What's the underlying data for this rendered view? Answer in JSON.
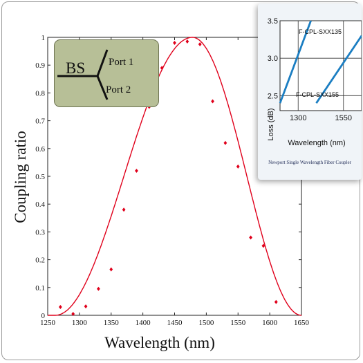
{
  "chart_data": [
    {
      "type": "scatter+line",
      "xlabel": "Wavelength  (nm)",
      "ylabel": "Coupling ratio",
      "xlim": [
        1250,
        1650
      ],
      "ylim": [
        0,
        1
      ],
      "xticks": [
        "1250",
        "1300",
        "1350",
        "1400",
        "1450",
        "1500",
        "1550",
        "1600",
        "1650"
      ],
      "yticks": [
        "0",
        "0.1",
        "0.2",
        "0.3",
        "0.4",
        "0.5",
        "0.6",
        "0.7",
        "0.8",
        "0.9",
        "1"
      ],
      "grid": false,
      "series": [
        {
          "kind": "points",
          "color": "#e0001b",
          "x": [
            1270,
            1290,
            1310,
            1330,
            1350,
            1370,
            1390,
            1410,
            1430,
            1450,
            1470,
            1490,
            1510,
            1530,
            1550,
            1570,
            1590,
            1610
          ],
          "y": [
            0.03,
            0.005,
            0.032,
            0.095,
            0.165,
            0.38,
            0.52,
            0.75,
            0.89,
            0.98,
            0.985,
            0.975,
            0.77,
            0.62,
            0.535,
            0.28,
            0.25,
            0.048
          ]
        },
        {
          "kind": "fit-curve",
          "color": "#e0001b",
          "shape": "sine-squared",
          "x": [
            1250,
            1262,
            1275,
            1300,
            1325,
            1350,
            1375,
            1400,
            1425,
            1450,
            1478,
            1500,
            1525,
            1550,
            1575,
            1600,
            1625,
            1650
          ],
          "y": [
            0.0,
            0.0,
            0.005,
            0.04,
            0.11,
            0.22,
            0.38,
            0.55,
            0.74,
            0.9,
            1.0,
            0.95,
            0.82,
            0.63,
            0.43,
            0.25,
            0.09,
            0.0
          ]
        }
      ]
    },
    {
      "type": "line",
      "xlabel": "Wavelength (nm)",
      "ylabel": "Loss (dB)",
      "xticks": [
        "1300",
        "1550"
      ],
      "yticks": [
        "2.5",
        "3.0",
        "3.5"
      ],
      "xlim": [
        1200,
        1650
      ],
      "ylim": [
        2.3,
        3.5
      ],
      "grid": true,
      "series": [
        {
          "name": "F-CPL-SXX135",
          "color": "#1b7ec2",
          "x": [
            1200,
            1370
          ],
          "y": [
            2.4,
            3.5
          ]
        },
        {
          "name": "F-CPL-SXX155",
          "color": "#1b7ec2",
          "x": [
            1400,
            1650
          ],
          "y": [
            2.4,
            3.3
          ]
        }
      ]
    }
  ],
  "inset": {
    "caption": "Newport Single Wavelength Fiber Coupler"
  },
  "diagram": {
    "bs_label": "BS",
    "port1": "Port 1",
    "port2": "Port 2"
  }
}
